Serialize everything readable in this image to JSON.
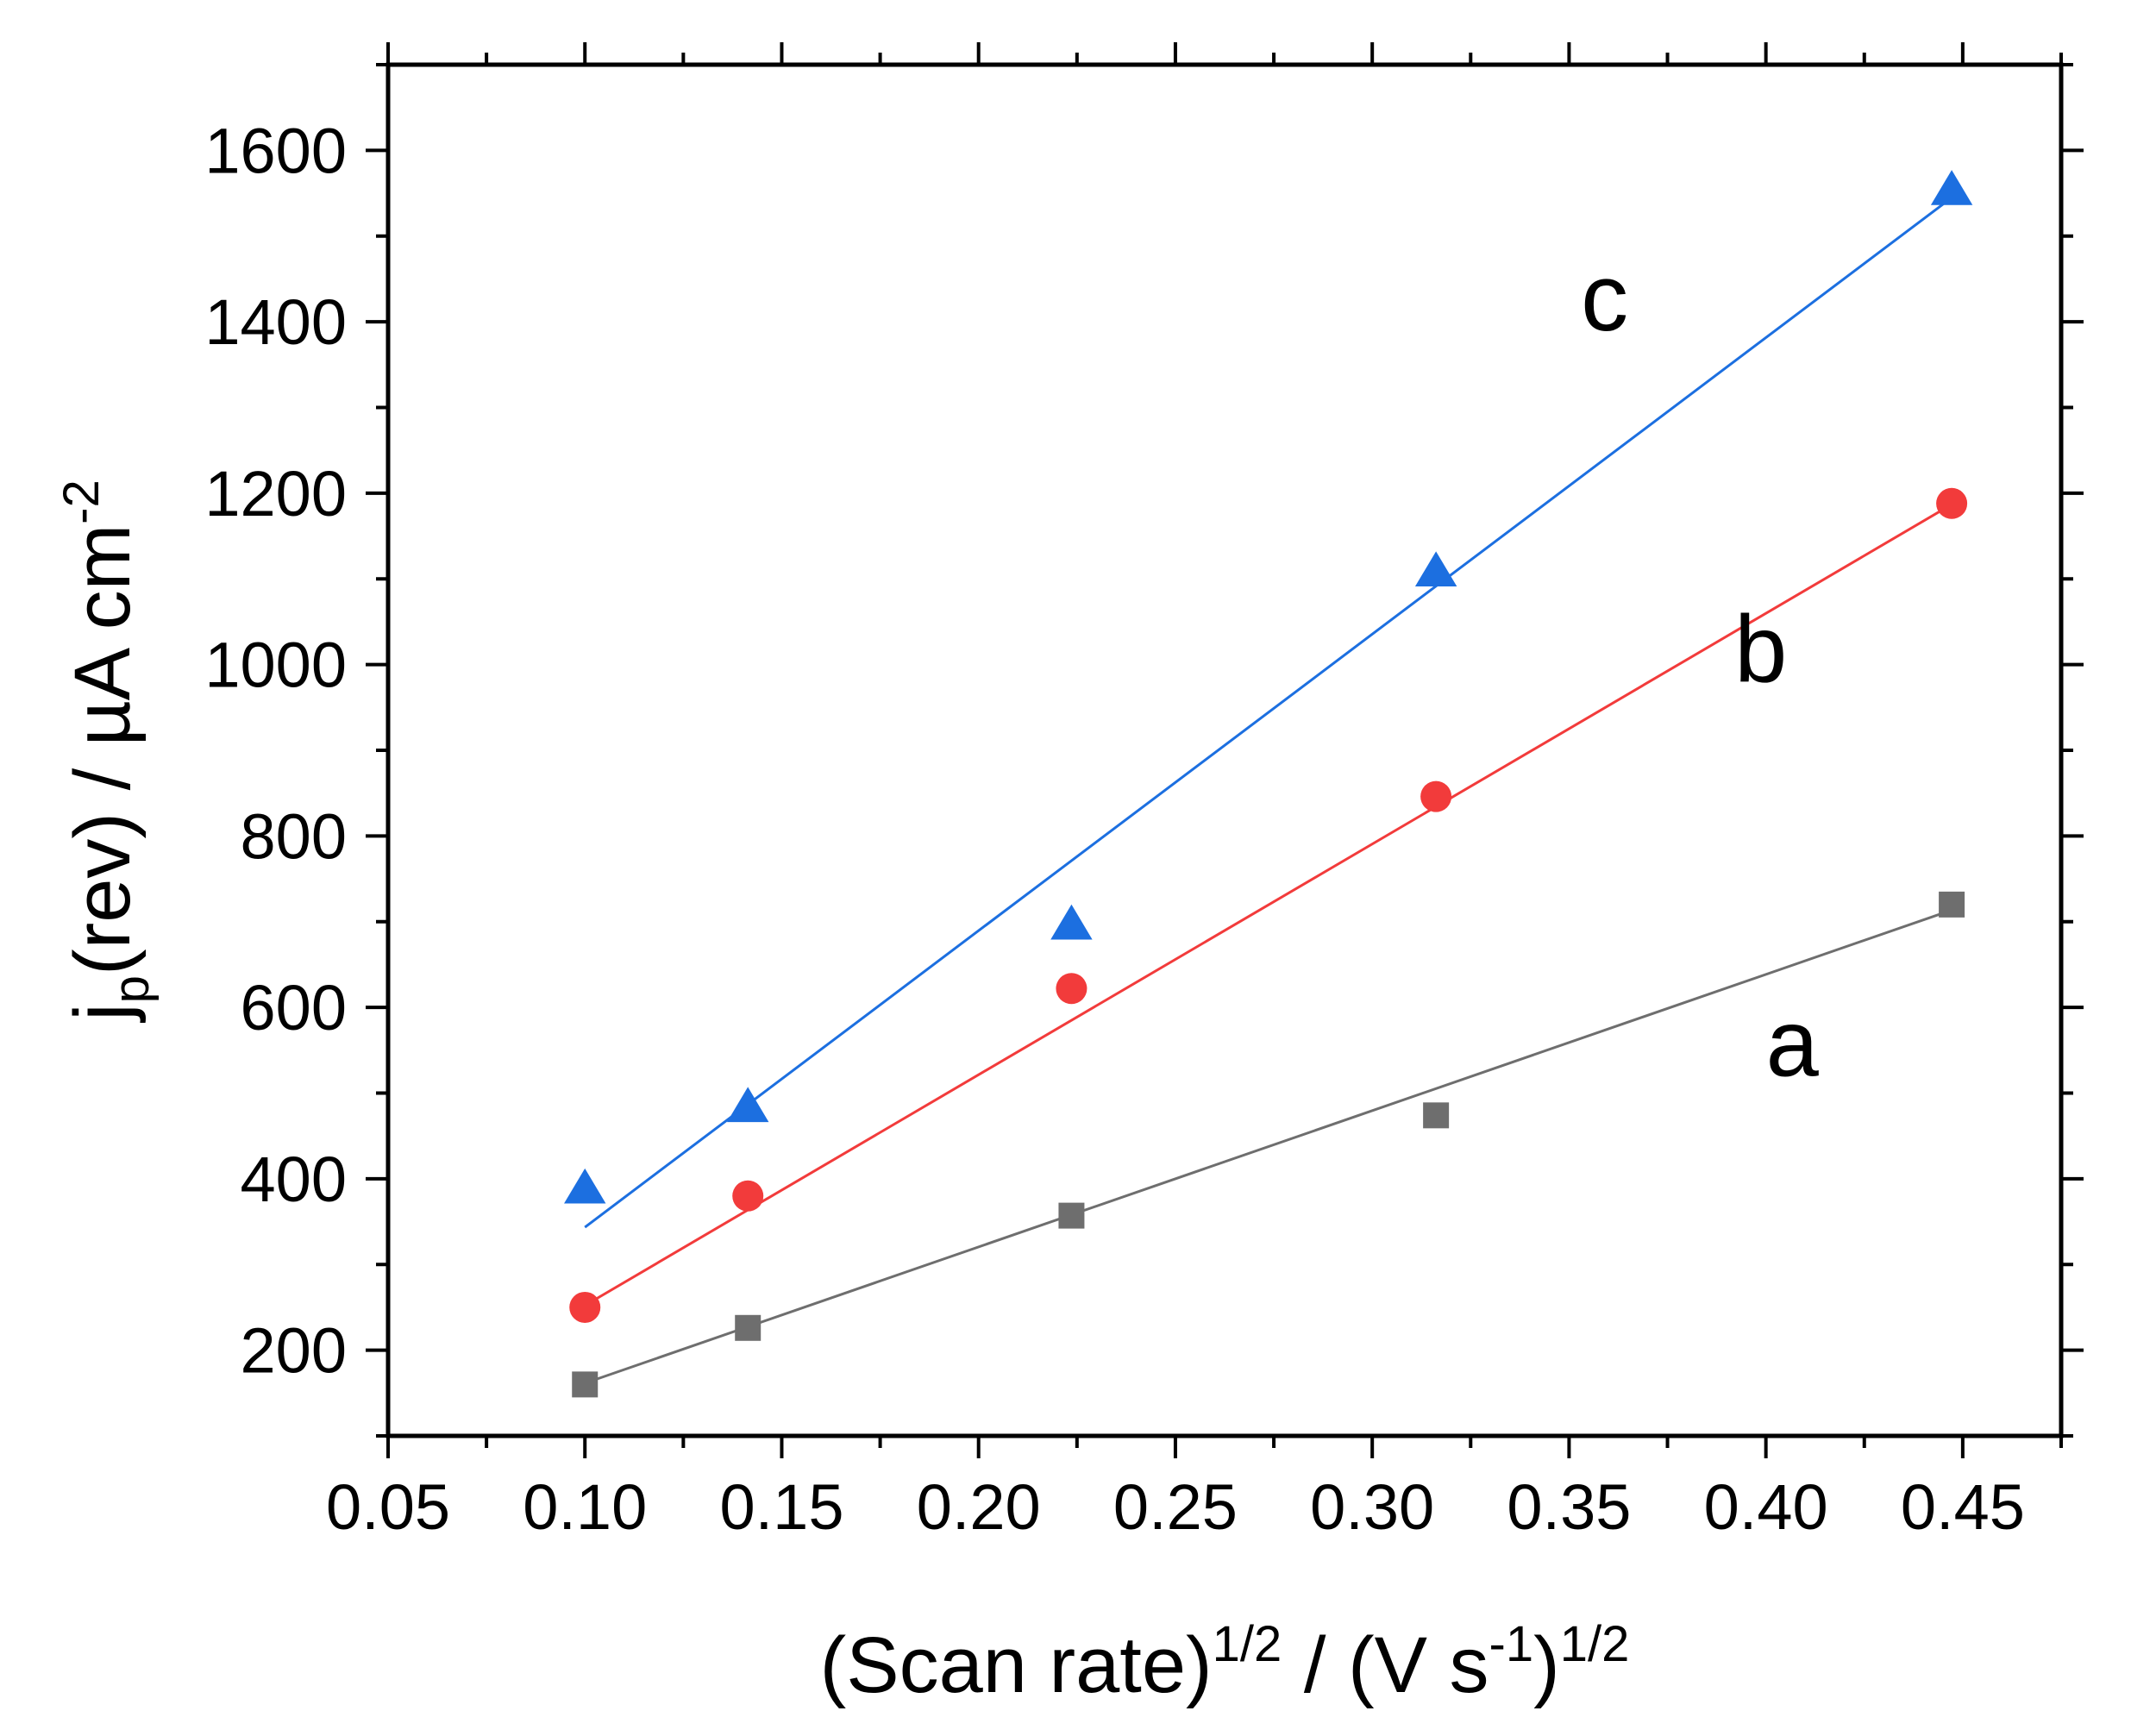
{
  "chart_data": {
    "type": "scatter",
    "title": "",
    "xlabel": {
      "main": "(Scan rate)",
      "sup1": "1/2",
      "mid": " / (V s",
      "sup2": "-1",
      "close": ")",
      "sup3": "1/2"
    },
    "ylabel": {
      "main": "j",
      "sub": "p",
      "mid": "(rev) / µA cm",
      "sup": "-2"
    },
    "xlim": [
      0.05,
      0.475
    ],
    "ylim": [
      100,
      1700
    ],
    "x_ticks": [
      0.05,
      0.1,
      0.15,
      0.2,
      0.25,
      0.3,
      0.35,
      0.4,
      0.45
    ],
    "x_tick_labels": [
      "0.05",
      "0.10",
      "0.15",
      "0.20",
      "0.25",
      "0.30",
      "0.35",
      "0.40",
      "0.45"
    ],
    "y_ticks": [
      200,
      400,
      600,
      800,
      1000,
      1200,
      1400,
      1600
    ],
    "y_tick_labels": [
      "200",
      "400",
      "600",
      "800",
      "1000",
      "1200",
      "1400",
      "1600"
    ],
    "grid": false,
    "x": [
      0.1,
      0.1414,
      0.2236,
      0.3162,
      0.4472
    ],
    "series": [
      {
        "name": "a",
        "label": "a",
        "marker": "square",
        "color": "#6e6e6e",
        "values": [
          160,
          226,
          357,
          474,
          720
        ],
        "fit": {
          "intercept": 2.5,
          "slope": 1590,
          "x_range": [
            0.1,
            0.4472
          ]
        },
        "label_position": {
          "x": 0.4,
          "y": 520
        }
      },
      {
        "name": "b",
        "label": "b",
        "marker": "circle",
        "color": "#f23b3b",
        "values": [
          250,
          380,
          622,
          846,
          1188
        ],
        "fit": {
          "intercept": -17,
          "slope": 2692,
          "x_range": [
            0.1,
            0.4472
          ]
        },
        "label_position": {
          "x": 0.392,
          "y": 980
        }
      },
      {
        "name": "c",
        "label": "c",
        "marker": "triangle",
        "color": "#1c6fe0",
        "values": [
          390,
          485,
          698,
          1110,
          1555
        ],
        "fit": {
          "intercept": -2.5,
          "slope": 3460,
          "x_range": [
            0.1,
            0.4472
          ]
        },
        "label_position": {
          "x": 0.353,
          "y": 1390
        }
      }
    ]
  }
}
